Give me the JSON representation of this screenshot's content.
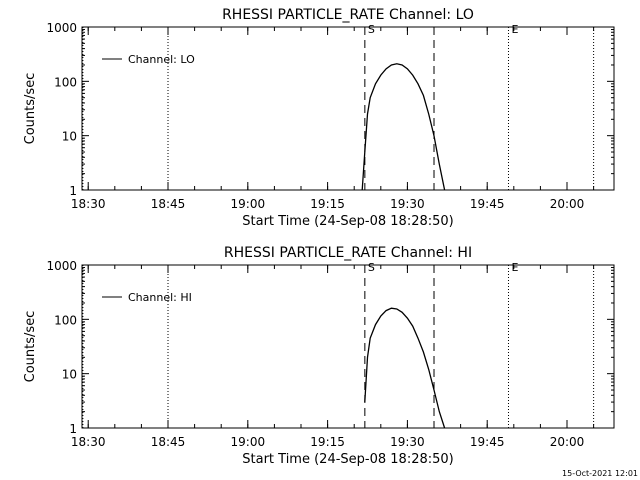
{
  "chart_data": [
    {
      "type": "line",
      "title": "RHESSI PARTICLE_RATE Channel: LO",
      "xlabel": "Start Time (24-Sep-08 18:28:50)",
      "ylabel": "Counts/sec",
      "y_scale": "log",
      "xlim": [
        "18:28:50",
        "20:08:50"
      ],
      "ylim": [
        1,
        1000
      ],
      "x_ticks": [
        "18:30",
        "18:45",
        "19:00",
        "19:15",
        "19:30",
        "19:45",
        "20:00"
      ],
      "y_ticks": [
        "1",
        "10",
        "100",
        "1000"
      ],
      "legend": {
        "position": "top-left",
        "entries": [
          "Channel: LO"
        ]
      },
      "markers": [
        {
          "time": "18:29",
          "style": "dotted",
          "label": ""
        },
        {
          "time": "18:45",
          "style": "dotted",
          "label": ""
        },
        {
          "time": "19:22",
          "style": "dashed",
          "label": "S"
        },
        {
          "time": "19:35",
          "style": "dashed",
          "label": ""
        },
        {
          "time": "19:49",
          "style": "dotted",
          "label": "E"
        },
        {
          "time": "20:05",
          "style": "dotted",
          "label": ""
        }
      ],
      "series": [
        {
          "name": "Channel: LO",
          "x": [
            "19:21:30",
            "19:22:00",
            "19:22:30",
            "19:23:00",
            "19:24:00",
            "19:25:00",
            "19:26:00",
            "19:27:00",
            "19:28:00",
            "19:29:00",
            "19:30:00",
            "19:31:00",
            "19:32:00",
            "19:33:00",
            "19:34:00",
            "19:35:00",
            "19:36:00",
            "19:37:00"
          ],
          "y": [
            1.0,
            5,
            25,
            50,
            90,
            130,
            170,
            200,
            210,
            200,
            170,
            130,
            90,
            55,
            25,
            10,
            3,
            1.0
          ]
        }
      ]
    },
    {
      "type": "line",
      "title": "RHESSI PARTICLE_RATE Channel: HI",
      "xlabel": "Start Time (24-Sep-08 18:28:50)",
      "ylabel": "Counts/sec",
      "y_scale": "log",
      "xlim": [
        "18:28:50",
        "20:08:50"
      ],
      "ylim": [
        1,
        1000
      ],
      "x_ticks": [
        "18:30",
        "18:45",
        "19:00",
        "19:15",
        "19:30",
        "19:45",
        "20:00"
      ],
      "y_ticks": [
        "1",
        "10",
        "100",
        "1000"
      ],
      "legend": {
        "position": "top-left",
        "entries": [
          "Channel: HI"
        ]
      },
      "markers": [
        {
          "time": "18:29",
          "style": "dotted",
          "label": ""
        },
        {
          "time": "18:45",
          "style": "dotted",
          "label": ""
        },
        {
          "time": "19:22",
          "style": "dashed",
          "label": "S"
        },
        {
          "time": "19:35",
          "style": "dashed",
          "label": ""
        },
        {
          "time": "19:49",
          "style": "dotted",
          "label": "E"
        },
        {
          "time": "20:05",
          "style": "dotted",
          "label": ""
        }
      ],
      "series": [
        {
          "name": "Channel: HI",
          "x": [
            "19:22:00",
            "19:22:30",
            "19:23:00",
            "19:24:00",
            "19:25:00",
            "19:26:00",
            "19:27:00",
            "19:28:00",
            "19:29:00",
            "19:30:00",
            "19:31:00",
            "19:32:00",
            "19:33:00",
            "19:34:00",
            "19:35:00",
            "19:36:00",
            "19:37:00"
          ],
          "y": [
            3,
            20,
            45,
            80,
            115,
            145,
            160,
            155,
            135,
            105,
            75,
            45,
            25,
            12,
            5,
            2,
            1.0
          ]
        }
      ]
    }
  ],
  "footer": {
    "timestamp": "15-Oct-2021 12:01"
  }
}
